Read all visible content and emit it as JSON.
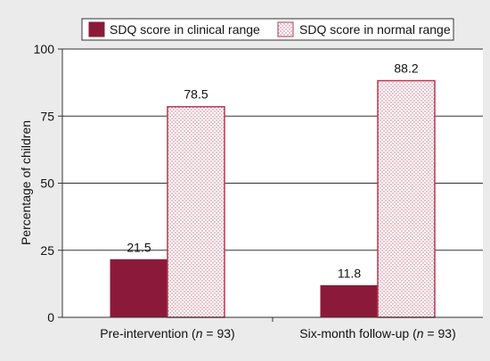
{
  "chart_data": {
    "type": "bar",
    "categories": [
      "Pre-intervention",
      "Six-month follow-up"
    ],
    "category_notes": [
      "n = 93",
      "n = 93"
    ],
    "series": [
      {
        "name": "SDQ score in clinical range",
        "values": [
          21.5,
          11.8
        ],
        "color": "#8b1a3a",
        "fill_style": "solid"
      },
      {
        "name": "SDQ score in normal range",
        "values": [
          78.5,
          88.2
        ],
        "color": "#b33a55",
        "fill_style": "dotted"
      }
    ],
    "ylabel": "Percentage of children",
    "xlabel": "",
    "ylim": [
      0,
      100
    ],
    "yticks": [
      0,
      25,
      50,
      75,
      100
    ],
    "grid": "horizontal",
    "legend_position": "top"
  },
  "colors": {
    "background": "#ebebeb",
    "plot_background": "#ffffff",
    "axis": "#333333",
    "gridline": "#333333"
  }
}
